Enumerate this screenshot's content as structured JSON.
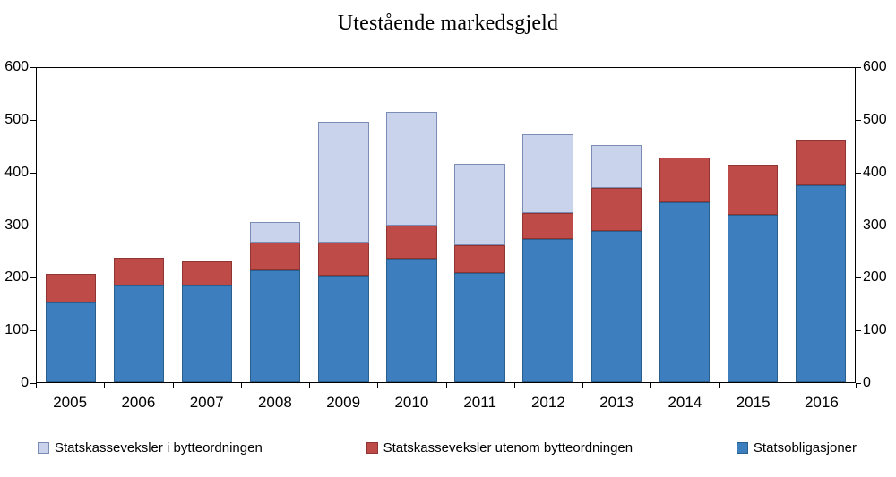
{
  "chart_data": {
    "type": "bar",
    "subtype": "stacked",
    "title": "Utestående markedsgjeld",
    "categories": [
      "2005",
      "2006",
      "2007",
      "2008",
      "2009",
      "2010",
      "2011",
      "2012",
      "2013",
      "2014",
      "2015",
      "2016"
    ],
    "series": [
      {
        "name": "Statsobligasjoner",
        "color": "#3d7ebf",
        "border_color": "#2a5e8c",
        "values": [
          152,
          185,
          185,
          213,
          204,
          236,
          209,
          274,
          289,
          343,
          320,
          376
        ]
      },
      {
        "name": "Statskasseveksler utenom bytteordningen",
        "color": "#be4b48",
        "border_color": "#8e3432",
        "values": [
          55,
          52,
          46,
          53,
          62,
          64,
          53,
          49,
          82,
          86,
          95,
          88
        ]
      },
      {
        "name": "Statskasseveksler i bytteordningen",
        "color": "#c9d3eb",
        "border_color": "#7c8db5",
        "values": [
          0,
          0,
          0,
          40,
          231,
          217,
          156,
          150,
          82,
          0,
          0,
          0
        ]
      }
    ],
    "ylim": [
      0,
      600
    ],
    "yticks": [
      0,
      100,
      200,
      300,
      400,
      500,
      600
    ],
    "y_axis_sides": [
      "left",
      "right"
    ],
    "grid": false,
    "legend": {
      "position": "bottom",
      "order": [
        2,
        1,
        0
      ]
    }
  }
}
